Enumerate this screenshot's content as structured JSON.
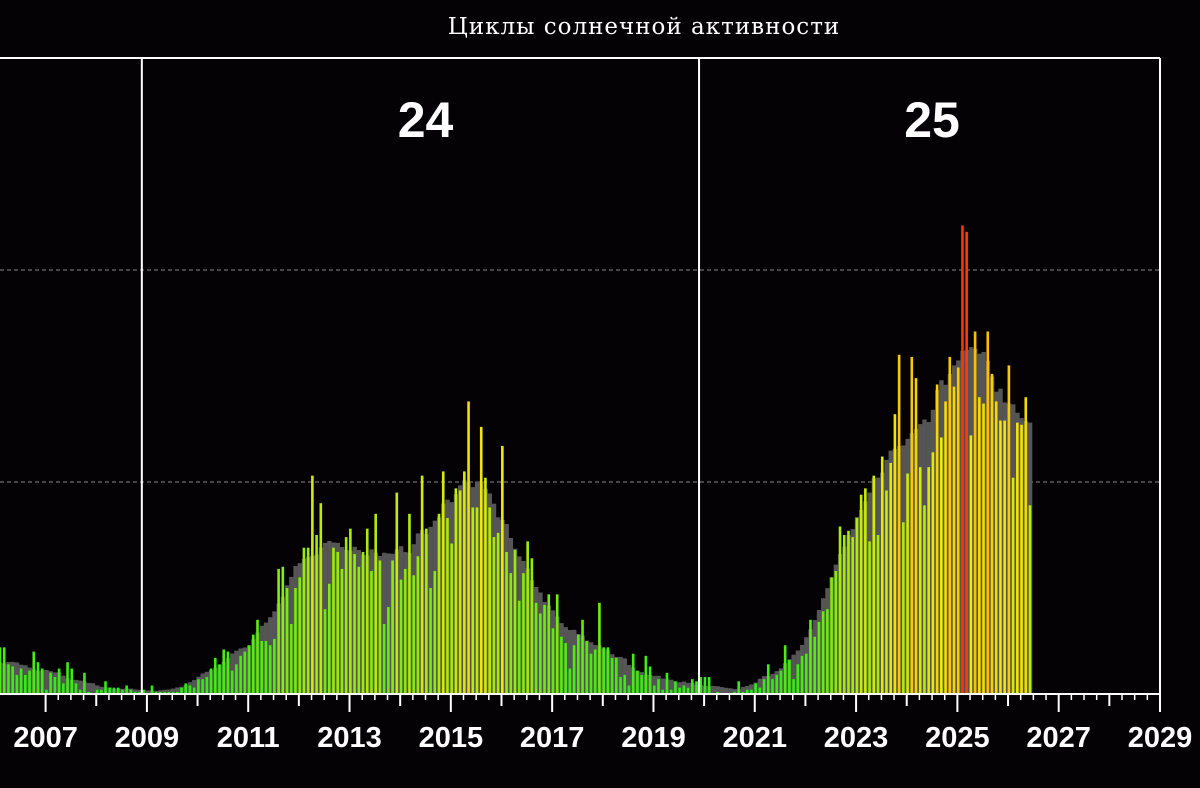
{
  "title": "Циклы солнечной активности",
  "chart_data": {
    "type": "bar",
    "title": "Циклы солнечной активности",
    "xlabel": "",
    "ylabel": "",
    "xlim": [
      2006.1,
      2029
    ],
    "ylim": [
      0,
      300
    ],
    "grid": "horizontal dashed",
    "cycle_labels": [
      {
        "label": "24",
        "x": 2014.5
      },
      {
        "label": "25",
        "x": 2024.5
      }
    ],
    "cycle_boundaries": [
      2008.9,
      2019.9
    ],
    "x_tick_labels": [
      2007,
      2009,
      2011,
      2013,
      2015,
      2017,
      2019,
      2021,
      2023,
      2025,
      2027,
      2029
    ],
    "start": 2006.1,
    "step": 0.0833333,
    "monthly_values": [
      22,
      22,
      14,
      13,
      9,
      12,
      9,
      11,
      20,
      15,
      12,
      2,
      10,
      8,
      12,
      5,
      15,
      12,
      5,
      2,
      10,
      1,
      0,
      2,
      2,
      6,
      3,
      3,
      3,
      2,
      4,
      2,
      1,
      1,
      2,
      0,
      4,
      1,
      1,
      1,
      1,
      1,
      1,
      3,
      5,
      4,
      3,
      7,
      7,
      8,
      12,
      17,
      14,
      21,
      20,
      11,
      14,
      18,
      20,
      23,
      28,
      35,
      25,
      25,
      23,
      26,
      59,
      60,
      50,
      33,
      50,
      55,
      69,
      69,
      103,
      75,
      90,
      40,
      52,
      69,
      67,
      59,
      74,
      78,
      66,
      60,
      67,
      78,
      58,
      85,
      63,
      33,
      41,
      63,
      95,
      54,
      59,
      85,
      56,
      65,
      103,
      78,
      50,
      58,
      85,
      105,
      83,
      71,
      97,
      96,
      105,
      138,
      88,
      88,
      126,
      102,
      88,
      74,
      76,
      117,
      67,
      57,
      68,
      44,
      57,
      72,
      64,
      43,
      38,
      42,
      47,
      31,
      47,
      27,
      24,
      12,
      23,
      28,
      35,
      25,
      19,
      21,
      43,
      22,
      22,
      17,
      17,
      8,
      9,
      4,
      19,
      11,
      9,
      18,
      13,
      4,
      7,
      2,
      10,
      2,
      6,
      3,
      4,
      3,
      7,
      6,
      8,
      8,
      8,
      0,
      1,
      0,
      0,
      0,
      1,
      6,
      1,
      2,
      2,
      5,
      3,
      7,
      14,
      7,
      9,
      11,
      23,
      16,
      7,
      14,
      18,
      19,
      35,
      27,
      34,
      39,
      40,
      55,
      58,
      79,
      75,
      77,
      74,
      83,
      94,
      97,
      72,
      103,
      75,
      112,
      96,
      109,
      132,
      160,
      81,
      104,
      159,
      149,
      107,
      89,
      107,
      114,
      146,
      121,
      138,
      159,
      145,
      154,
      221,
      218,
      122,
      171,
      140,
      137,
      171,
      151,
      138,
      129,
      129,
      155,
      102,
      128,
      127,
      140,
      89
    ]
  }
}
